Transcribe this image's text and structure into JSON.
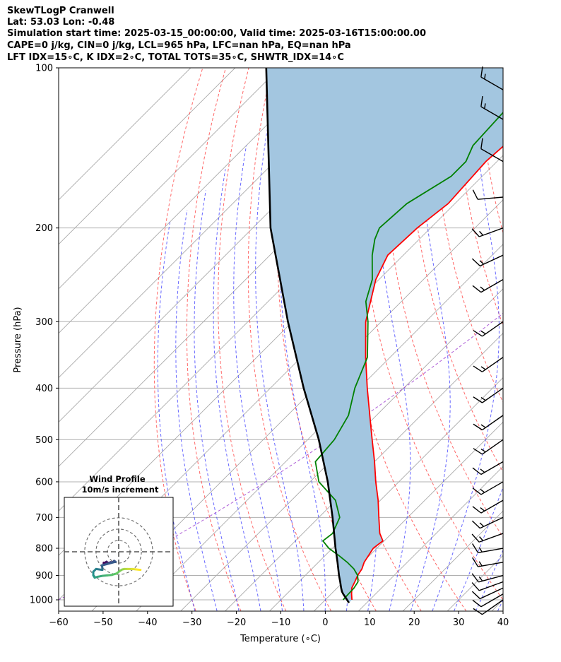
{
  "header": {
    "line1": "SkewTLogP Cranwell",
    "line2": "Lat: 53.03   Lon: -0.48",
    "line3": "Simulation start time: 2025-03-15_00:00:00, Valid time: 2025-03-16T15:00:00.00",
    "line4": "CAPE=0 j/kg, CIN=0 j/kg, LCL=965 hPa, LFC=nan hPa, EQ=nan hPa",
    "line5": "LFT IDX=15∘C, K IDX=2∘C, TOTAL TOTS=35∘C, SHWTR_IDX=14∘C"
  },
  "chart_data": {
    "type": "line",
    "title": "SkewTLogP Cranwell",
    "xlabel": "Temperature (∘C)",
    "ylabel": "Pressure (hPa)",
    "xlim": [
      -60,
      40
    ],
    "ylim": [
      1050,
      100
    ],
    "x_ticks": [
      -60,
      -50,
      -40,
      -30,
      -20,
      -10,
      0,
      10,
      20,
      30,
      40
    ],
    "x_tick_labels": [
      "−60",
      "−50",
      "−40",
      "−30",
      "−20",
      "−10",
      "0",
      "10",
      "20",
      "30",
      "40"
    ],
    "y_ticks": [
      1000,
      900,
      800,
      700,
      600,
      500,
      400,
      300,
      200,
      100
    ],
    "y_tick_labels": [
      "1000",
      "900",
      "800",
      "700",
      "600",
      "500",
      "400",
      "300",
      "200",
      "100"
    ],
    "series": [
      {
        "name": "temperature",
        "color": "#ff0000",
        "points": [
          [
            1000,
            6.0
          ],
          [
            975,
            4.6
          ],
          [
            950,
            3.3
          ],
          [
            925,
            2.6
          ],
          [
            900,
            1.8
          ],
          [
            875,
            1.3
          ],
          [
            850,
            0.3
          ],
          [
            800,
            -0.8
          ],
          [
            775,
            -0.3
          ],
          [
            750,
            -2.7
          ],
          [
            700,
            -6.5
          ],
          [
            650,
            -10.5
          ],
          [
            600,
            -15.2
          ],
          [
            550,
            -20.0
          ],
          [
            500,
            -25.5
          ],
          [
            450,
            -31.5
          ],
          [
            400,
            -38.2
          ],
          [
            350,
            -45.5
          ],
          [
            300,
            -53.5
          ],
          [
            250,
            -60.7
          ],
          [
            225,
            -63.5
          ],
          [
            200,
            -63.0
          ],
          [
            180,
            -61.5
          ],
          [
            150,
            -62.5
          ],
          [
            140,
            -62.0
          ],
          [
            130,
            -60.5
          ],
          [
            120,
            -60.0
          ],
          [
            110,
            -59.3
          ],
          [
            100,
            -58.5
          ]
        ]
      },
      {
        "name": "dewpoint",
        "color": "#008000",
        "points": [
          [
            1000,
            4.0
          ],
          [
            975,
            3.9
          ],
          [
            950,
            3.8
          ],
          [
            925,
            3.3
          ],
          [
            900,
            1.8
          ],
          [
            875,
            -0.5
          ],
          [
            850,
            -3.5
          ],
          [
            825,
            -7.0
          ],
          [
            800,
            -10.8
          ],
          [
            775,
            -13.8
          ],
          [
            750,
            -13.3
          ],
          [
            700,
            -15.3
          ],
          [
            650,
            -20.1
          ],
          [
            600,
            -28.0
          ],
          [
            550,
            -33.3
          ],
          [
            500,
            -34.0
          ],
          [
            450,
            -36.3
          ],
          [
            400,
            -41.0
          ],
          [
            350,
            -45.1
          ],
          [
            300,
            -53.0
          ],
          [
            275,
            -58.0
          ],
          [
            250,
            -61.5
          ],
          [
            225,
            -67.0
          ],
          [
            210,
            -70.0
          ],
          [
            200,
            -71.5
          ],
          [
            180,
            -70.8
          ],
          [
            160,
            -67.0
          ],
          [
            150,
            -67.0
          ],
          [
            140,
            -69.0
          ],
          [
            120,
            -69.7
          ],
          [
            100,
            -68.5
          ]
        ]
      },
      {
        "name": "parcel",
        "color": "#000000",
        "points": [
          [
            1013,
            6.0
          ],
          [
            1000,
            4.9
          ],
          [
            975,
            2.7
          ],
          [
            965,
            1.9
          ],
          [
            950,
            0.9
          ],
          [
            925,
            -0.7
          ],
          [
            900,
            -2.4
          ],
          [
            850,
            -5.7
          ],
          [
            800,
            -9.3
          ],
          [
            700,
            -16.9
          ],
          [
            600,
            -26.0
          ],
          [
            500,
            -37.5
          ],
          [
            400,
            -52.5
          ],
          [
            300,
            -71.0
          ],
          [
            200,
            -96.0
          ],
          [
            100,
            -133.0
          ]
        ]
      }
    ],
    "shaded_region": {
      "between": [
        "parcel",
        "temperature"
      ],
      "color": "#a3c6e0"
    },
    "wind_barbs": [
      {
        "p": 1000,
        "speed_kt": 10,
        "dir": 235
      },
      {
        "p": 975,
        "speed_kt": 10,
        "dir": 240
      },
      {
        "p": 950,
        "speed_kt": 10,
        "dir": 245
      },
      {
        "p": 925,
        "speed_kt": 10,
        "dir": 250
      },
      {
        "p": 900,
        "speed_kt": 15,
        "dir": 255
      },
      {
        "p": 850,
        "speed_kt": 15,
        "dir": 260
      },
      {
        "p": 800,
        "speed_kt": 15,
        "dir": 260
      },
      {
        "p": 750,
        "speed_kt": 15,
        "dir": 250
      },
      {
        "p": 700,
        "speed_kt": 15,
        "dir": 245
      },
      {
        "p": 650,
        "speed_kt": 15,
        "dir": 240
      },
      {
        "p": 600,
        "speed_kt": 15,
        "dir": 240
      },
      {
        "p": 550,
        "speed_kt": 15,
        "dir": 240
      },
      {
        "p": 500,
        "speed_kt": 15,
        "dir": 235
      },
      {
        "p": 450,
        "speed_kt": 15,
        "dir": 235
      },
      {
        "p": 400,
        "speed_kt": 15,
        "dir": 235
      },
      {
        "p": 350,
        "speed_kt": 15,
        "dir": 235
      },
      {
        "p": 300,
        "speed_kt": 15,
        "dir": 235
      },
      {
        "p": 250,
        "speed_kt": 15,
        "dir": 240
      },
      {
        "p": 225,
        "speed_kt": 15,
        "dir": 245
      },
      {
        "p": 200,
        "speed_kt": 15,
        "dir": 250
      },
      {
        "p": 175,
        "speed_kt": 10,
        "dir": 265
      },
      {
        "p": 150,
        "speed_kt": 10,
        "dir": 300
      },
      {
        "p": 125,
        "speed_kt": 15,
        "dir": 300
      },
      {
        "p": 110,
        "speed_kt": 15,
        "dir": 300
      }
    ],
    "inset": {
      "title_line1": "Wind Profile",
      "title_line2": "10m/s increment",
      "u_range": [
        -12,
        12
      ],
      "v_range": [
        -12,
        12
      ],
      "rings": [
        10,
        20,
        30
      ],
      "hodograph": [
        [
          -3.3,
          -2.4
        ],
        [
          -3.3,
          -2.6
        ],
        [
          -2.7,
          -2.2
        ],
        [
          -2.2,
          -2.5
        ],
        [
          -1.8,
          -2.3
        ],
        [
          -1.3,
          -2.3
        ],
        [
          -1.0,
          -2.0
        ],
        [
          -0.7,
          -2.2
        ],
        [
          -3.7,
          -3.0
        ],
        [
          -3.6,
          -3.6
        ],
        [
          -3.6,
          -4.0
        ],
        [
          -5.0,
          -3.8
        ],
        [
          -5.6,
          -4.4
        ],
        [
          -5.6,
          -5.2
        ],
        [
          -5.3,
          -5.7
        ],
        [
          -4.6,
          -5.5
        ],
        [
          -3.5,
          -5.3
        ],
        [
          -2.5,
          -5.2
        ],
        [
          -1.5,
          -5.1
        ],
        [
          -0.5,
          -4.8
        ],
        [
          0.3,
          -4.2
        ],
        [
          0.8,
          -3.9
        ],
        [
          1.3,
          -3.8
        ],
        [
          2.0,
          -3.8
        ],
        [
          3.0,
          -3.8
        ],
        [
          3.9,
          -3.9
        ],
        [
          4.8,
          -4.0
        ]
      ]
    }
  }
}
